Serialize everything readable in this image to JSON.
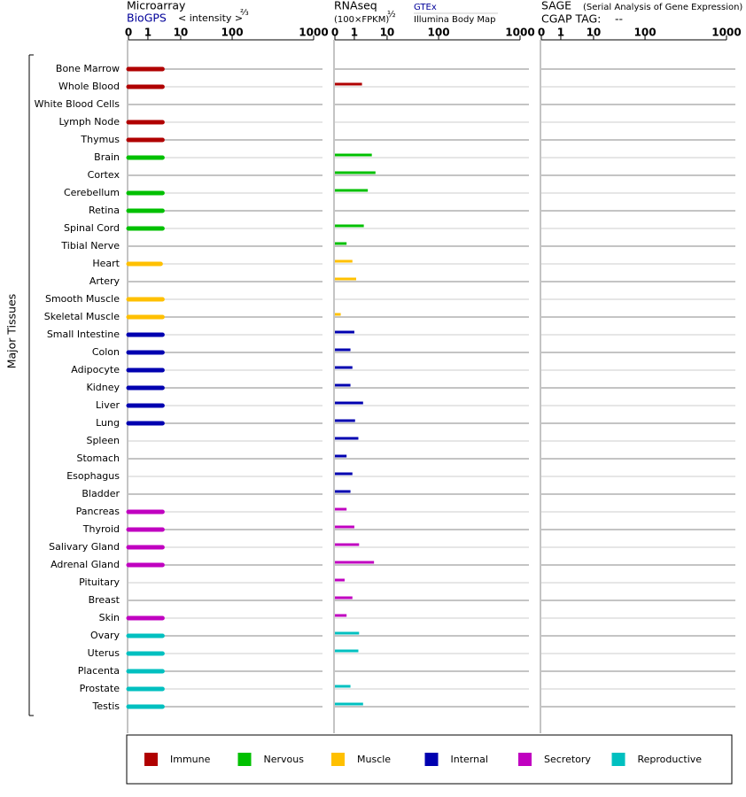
{
  "y_label": "Major Tissues",
  "tissues": [
    "Bone Marrow",
    "Whole Blood",
    "White Blood Cells",
    "Lymph Node",
    "Thymus",
    "Brain",
    "Cortex",
    "Cerebellum",
    "Retina",
    "Spinal Cord",
    "Tibial Nerve",
    "Heart",
    "Artery",
    "Smooth Muscle",
    "Skeletal Muscle",
    "Small Intestine",
    "Colon",
    "Adipocyte",
    "Kidney",
    "Liver",
    "Lung",
    "Spleen",
    "Stomach",
    "Esophagus",
    "Bladder",
    "Pancreas",
    "Thyroid",
    "Salivary Gland",
    "Adrenal Gland",
    "Pituitary",
    "Breast",
    "Skin",
    "Ovary",
    "Uterus",
    "Placenta",
    "Prostate",
    "Testis"
  ],
  "tissue_groups": [
    0,
    0,
    0,
    0,
    0,
    1,
    1,
    1,
    1,
    1,
    1,
    2,
    2,
    2,
    2,
    3,
    3,
    3,
    3,
    3,
    3,
    3,
    3,
    3,
    3,
    4,
    4,
    4,
    4,
    4,
    4,
    4,
    5,
    5,
    5,
    5,
    5
  ],
  "groups": [
    {
      "name": "Immune",
      "color": "#b00000"
    },
    {
      "name": "Nervous",
      "color": "#00c000"
    },
    {
      "name": "Muscle",
      "color": "#ffc000"
    },
    {
      "name": "Internal",
      "color": "#0000b0"
    },
    {
      "name": "Secretory",
      "color": "#c000c0"
    },
    {
      "name": "Reproductive",
      "color": "#00c0c0"
    }
  ],
  "panels": [
    {
      "title": "Microarray",
      "source": "BioGPS",
      "axis_label": "< intensity >",
      "exponent": "⅔",
      "ticks": [
        0,
        1,
        10,
        100,
        1000
      ],
      "values": [
        5,
        5,
        null,
        5,
        5,
        5,
        null,
        5,
        5,
        5,
        null,
        4.5,
        null,
        5,
        5,
        5,
        5,
        5,
        5,
        5,
        5,
        null,
        null,
        null,
        null,
        5,
        5,
        5,
        5,
        null,
        null,
        5,
        5,
        5,
        5,
        5,
        5
      ]
    },
    {
      "title": "RNAseq",
      "unit": "(100×FPKM)",
      "exponent": "½",
      "sources": [
        "GTEx",
        "Illumina Body Map"
      ],
      "ticks": [
        0,
        1,
        10,
        100,
        1000
      ],
      "values": [
        null,
        3.1,
        null,
        null,
        null,
        5.8,
        6.8,
        4.7,
        null,
        3.6,
        0.6,
        0.9,
        1.5,
        null,
        0.3,
        1.0,
        0.8,
        0.9,
        0.8,
        3.4,
        1.2,
        2.1,
        0.6,
        0.9,
        0.8,
        0.6,
        1.0,
        2.3,
        6.4,
        0.5,
        0.9,
        0.6,
        2.3,
        2.1,
        null,
        0.8,
        3.4
      ]
    },
    {
      "title": "SAGE",
      "subtitle": "(Serial Analysis of Gene Expression)",
      "tag_label": "CGAP TAG:",
      "tag": "--",
      "ticks": [
        0,
        1,
        10,
        100,
        1000
      ]
    }
  ]
}
